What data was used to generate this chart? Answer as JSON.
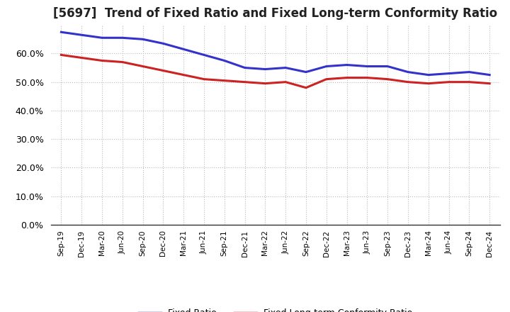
{
  "title": "[5697]  Trend of Fixed Ratio and Fixed Long-term Conformity Ratio",
  "x_labels": [
    "Sep-19",
    "Dec-19",
    "Mar-20",
    "Jun-20",
    "Sep-20",
    "Dec-20",
    "Mar-21",
    "Jun-21",
    "Sep-21",
    "Dec-21",
    "Mar-22",
    "Jun-22",
    "Sep-22",
    "Dec-22",
    "Mar-23",
    "Jun-23",
    "Sep-23",
    "Dec-23",
    "Mar-24",
    "Jun-24",
    "Sep-24",
    "Dec-24"
  ],
  "fixed_ratio": [
    67.5,
    66.5,
    65.5,
    65.5,
    65.0,
    63.5,
    61.5,
    59.5,
    57.5,
    55.0,
    54.5,
    55.0,
    53.5,
    55.5,
    56.0,
    55.5,
    55.5,
    53.5,
    52.5,
    53.0,
    53.5,
    52.5
  ],
  "fixed_lt_ratio": [
    59.5,
    58.5,
    57.5,
    57.0,
    55.5,
    54.0,
    52.5,
    51.0,
    50.5,
    50.0,
    49.5,
    50.0,
    48.0,
    51.0,
    51.5,
    51.5,
    51.0,
    50.0,
    49.5,
    50.0,
    50.0,
    49.5
  ],
  "fixed_ratio_color": "#3333CC",
  "fixed_lt_ratio_color": "#CC2222",
  "ylim_min": 0,
  "ylim_max": 70,
  "yticks": [
    0,
    10,
    20,
    30,
    40,
    50,
    60
  ],
  "background_color": "#FFFFFF",
  "grid_color": "#BBBBBB",
  "title_fontsize": 12,
  "legend_fixed": "Fixed Ratio",
  "legend_fixed_lt": "Fixed Long-term Conformity Ratio"
}
